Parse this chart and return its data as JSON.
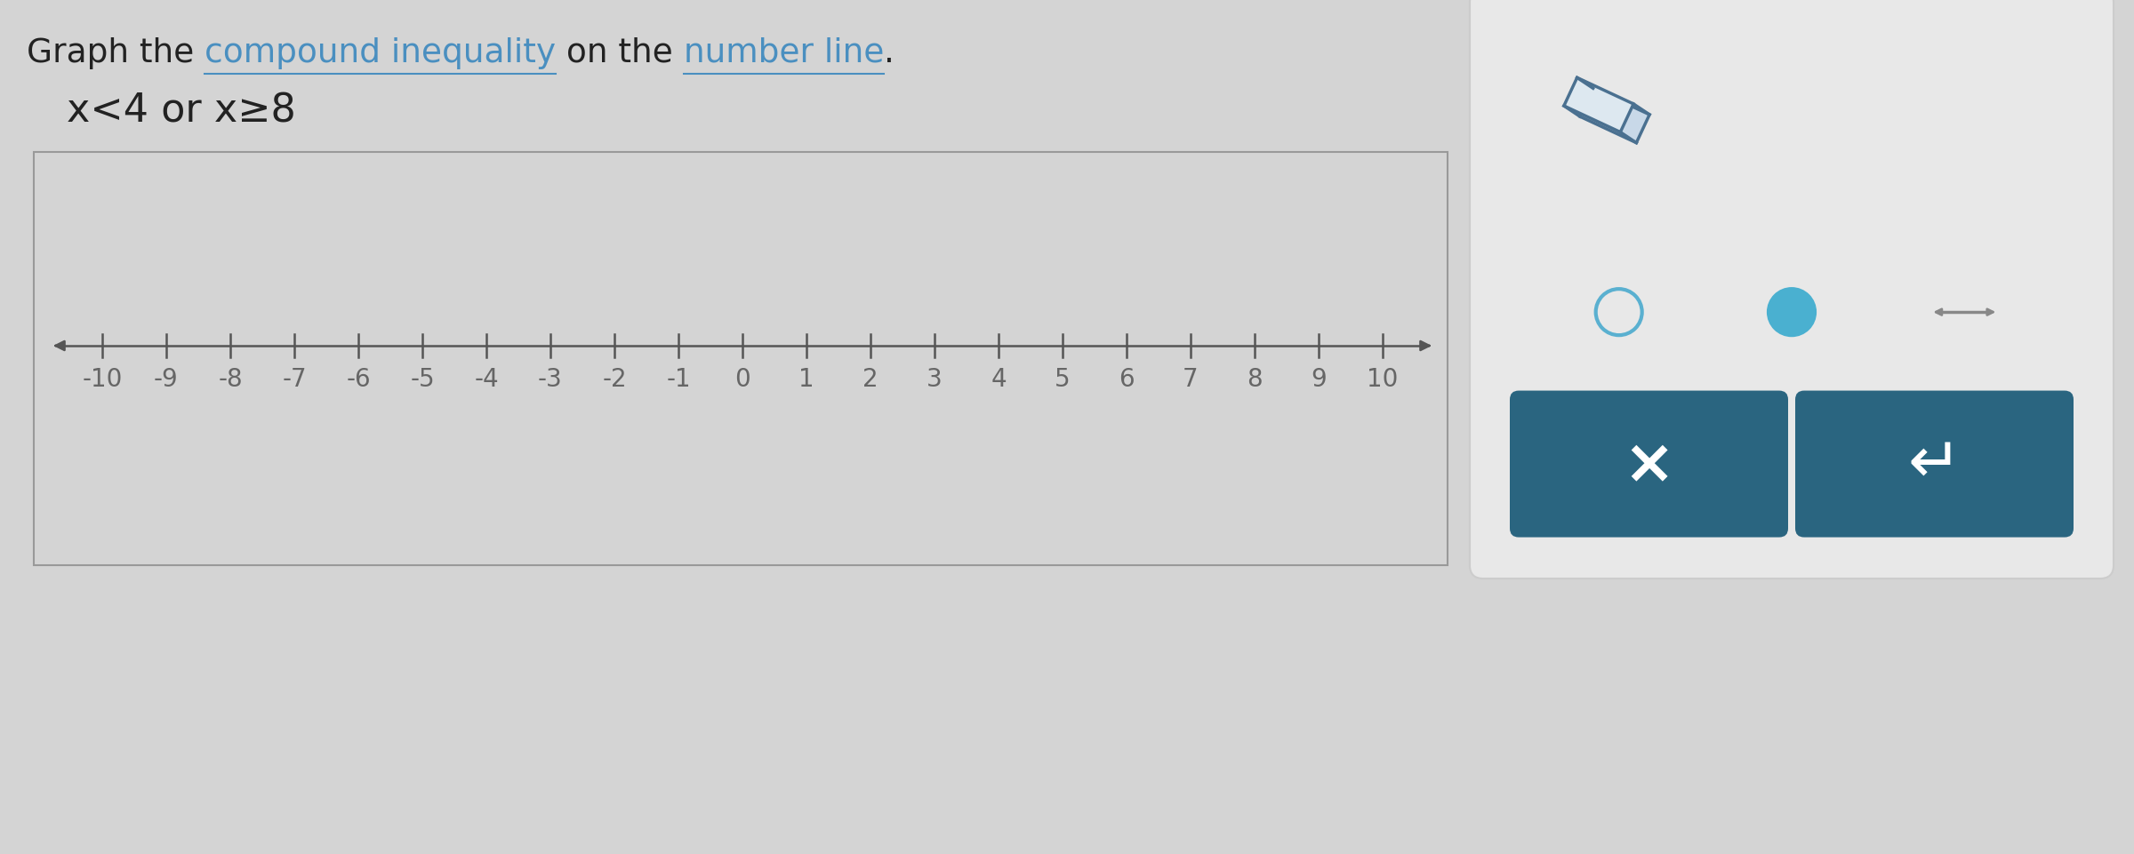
{
  "title_normal1": "Graph the ",
  "title_link1": "compound inequality",
  "title_normal2": " on the ",
  "title_link2": "number line",
  "title_normal3": ".",
  "inequality_text": "x<4 or x≥8",
  "number_line_min": -10,
  "number_line_max": 10,
  "background_color": "#d4d4d4",
  "box_facecolor": "#d4d4d4",
  "box_edgecolor": "#999999",
  "axis_line_color": "#555555",
  "tick_label_color": "#666666",
  "title_color": "#222222",
  "link_color": "#4a8fc0",
  "inequality_color": "#222222",
  "title_fontsize": 27,
  "ineq_fontsize": 32,
  "tick_fontsize": 20,
  "panel_bg": "#e8e8e8",
  "panel_border": "#cccccc",
  "blue_button_bg": "#2a6580",
  "open_circle_stroke": "#5ab0d0",
  "filled_circle_color": "#4ab0d0",
  "eraser_stroke": "#4a7090",
  "dash_color": "#888888"
}
